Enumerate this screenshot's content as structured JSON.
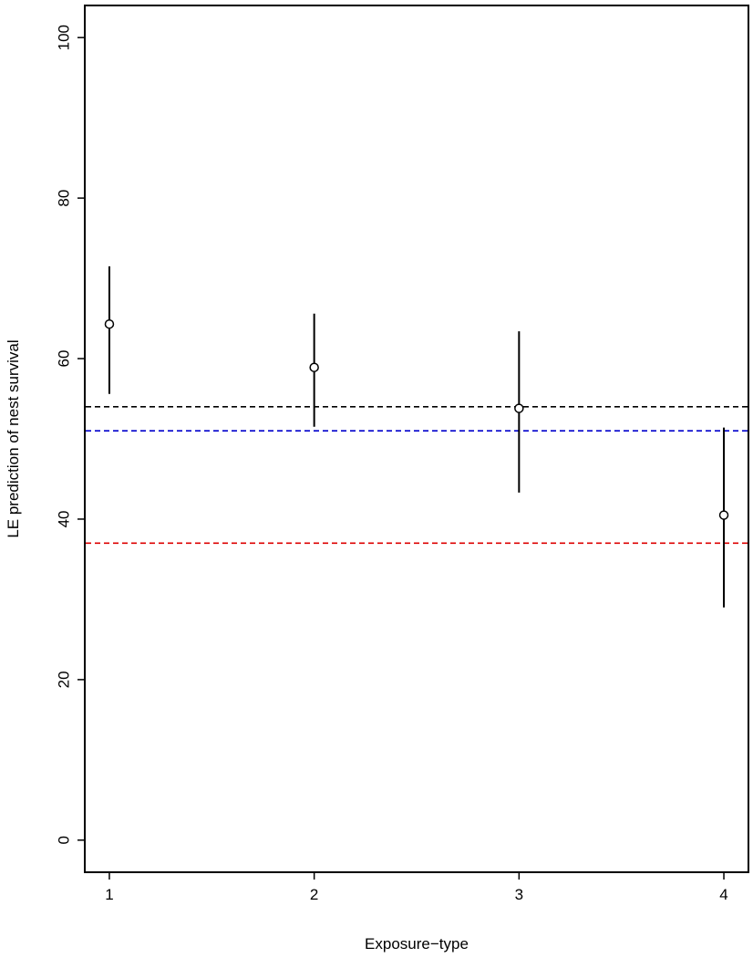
{
  "chart_data": {
    "type": "scatter",
    "title": "",
    "xlabel": "Exposure−type",
    "ylabel": "LE prediction of nest survival",
    "xlim": [
      0.88,
      4.12
    ],
    "ylim": [
      -4,
      104
    ],
    "x_ticks": [
      1,
      2,
      3,
      4
    ],
    "x_tick_labels": [
      "1",
      "2",
      "3",
      "4"
    ],
    "y_ticks": [
      0,
      20,
      40,
      60,
      80,
      100
    ],
    "y_tick_labels": [
      "0",
      "20",
      "40",
      "60",
      "80",
      "100"
    ],
    "grid": false,
    "legend": "none",
    "series": [
      {
        "marker": "open-circle",
        "color": "#000000",
        "x": [
          1,
          2,
          3,
          4
        ],
        "y": [
          64.3,
          58.9,
          53.8,
          40.5
        ],
        "error_low": [
          55.6,
          51.5,
          43.3,
          29.0
        ],
        "error_high": [
          71.5,
          65.6,
          63.4,
          51.4
        ]
      }
    ],
    "reference_lines": [
      {
        "y": 54.0,
        "color": "#000000",
        "style": "dashed"
      },
      {
        "y": 51.0,
        "color": "#0000cc",
        "style": "dashed"
      },
      {
        "y": 37.0,
        "color": "#dd0000",
        "style": "dashed"
      }
    ]
  }
}
